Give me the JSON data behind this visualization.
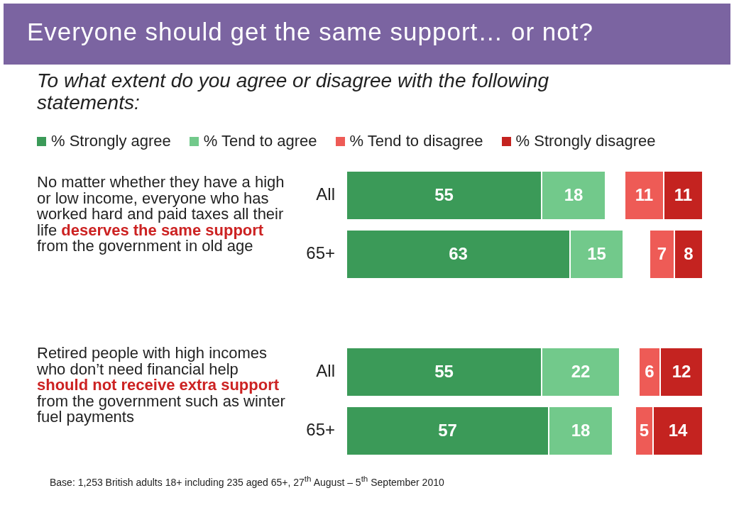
{
  "chart_data": [
    {
      "type": "bar",
      "orientation": "horizontal",
      "stacked": true,
      "title": "Everyone should get the same support… or not?",
      "subtitle": "To what extent do you agree or disagree with the following statements:",
      "categories": [
        "All",
        "65+",
        null,
        "All",
        "65+"
      ],
      "xlim": [
        0,
        78
      ],
      "tick_labels": "y",
      "series": [
        {
          "name": "% Strongly agree",
          "color": "#3b9a58",
          "values": [
            55,
            63,
            null,
            55,
            57
          ]
        },
        {
          "name": "% Tend to agree",
          "color": "#72c98b",
          "values": [
            18,
            15,
            null,
            22,
            18
          ]
        }
      ],
      "data_labels": true,
      "legend": "top",
      "annotations": [
        "No matter whether they have a high or low income, everyone who has worked hard and paid taxes all their life",
        "deserves the same support",
        "from the government in old age",
        "Retired people with high incomes who don’t need financial help",
        "should not receive extra support",
        "from the government such as winter fuel payments",
        "Base: 1,253 British adults 18+ including 235 aged 65+,  27$^{th}$ August  – 5$^{th}$ September 2010"
      ]
    },
    {
      "type": "bar",
      "orientation": "horizontal",
      "stacked": true,
      "tick_labels": false,
      "series": [
        {
          "name": "% Strongly disagree",
          "color": "#c42320",
          "values": [
            11,
            8,
            null,
            12,
            14
          ]
        },
        {
          "name": "% Tend to disagree",
          "color": "#ee5b56",
          "values": [
            11,
            7,
            null,
            6,
            5
          ]
        }
      ],
      "data_labels": true,
      "legend": "top"
    }
  ]
}
